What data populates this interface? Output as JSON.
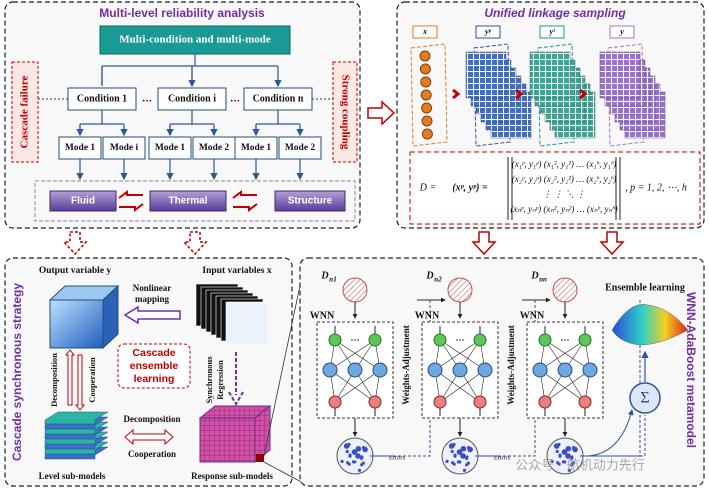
{
  "reliability": {
    "title": "Multi-level reliability analysis",
    "top_box": "Multi-condition and multi-mode",
    "conditions": [
      "Condition 1",
      "Condition i",
      "Condition n"
    ],
    "ellipsis": "…",
    "side_left": "Cascade failure",
    "side_right": "Strong coupling",
    "modes": [
      "Mode 1",
      "Mode i",
      "Mode 1",
      "Mode 2",
      "Mode 1",
      "Mode 2"
    ],
    "fields": [
      "Fluid",
      "Thermal",
      "Structure"
    ]
  },
  "sampling": {
    "title": "Unified linkage sampling",
    "labels": [
      "x",
      "yᵖ",
      "yˡ",
      "y"
    ],
    "formula": {
      "lhs": "D =",
      "pair": "(xᵖ, yᵖ) =",
      "rows": [
        "(x₁ᵖ, y₁ᵖ)   (x₁², y₁²)   …   (x₁ʰ, y₁ʰ)",
        "(x₂ᵖ, y₂ᵖ)   (x₂², y₂²)   …   (x₂ʰ, y₂ʰ)",
        "⋮              ⋮          ⋱         ⋮",
        "(xₙᵖ, yₙᵖ)   (xₙ², yₙ²)   …   (xₙʰ, yₙʰ)"
      ],
      "rhs": ", p = 1, 2, ⋯, h"
    }
  },
  "strategy": {
    "title": "Cascade synchronous strategy",
    "output": "Output variable y",
    "input": "Input variables x",
    "mapping": [
      "Nonlinear",
      "mapping"
    ],
    "center": [
      "Cascade",
      "ensemble",
      "learning"
    ],
    "left_labels": [
      "Decomposition",
      "Cooperation"
    ],
    "sync": [
      "Synchronous",
      "Regression"
    ],
    "middle": [
      "Decomposition",
      "Cooperation"
    ],
    "level": "Level sub-models",
    "response": "Response sub-models"
  },
  "metamodel": {
    "title": "WNN-AdaBoost metamodel",
    "datasets": [
      {
        "main": "D",
        "sub": "n1"
      },
      {
        "main": "D",
        "sub": "n2"
      },
      {
        "main": "D",
        "sub": "nn"
      }
    ],
    "network_label": [
      "WNN",
      "WNN",
      "WNN"
    ],
    "adjust": [
      "Weights-Adjustment",
      "Weights-Adjustment"
    ],
    "errors": [
      "Errors",
      "Errors"
    ],
    "ensemble": "Ensemble learning",
    "sum": "Σ"
  },
  "watermark": "公众号 · 航机动力先行"
}
